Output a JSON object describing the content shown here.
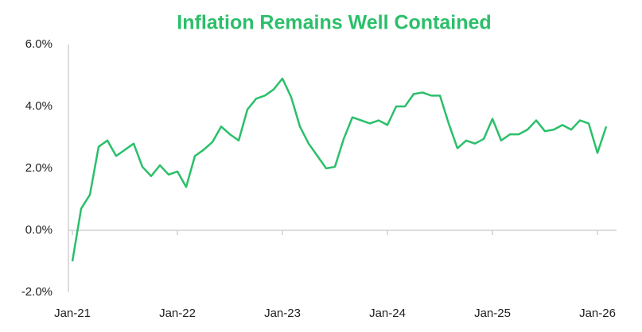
{
  "chart_data": {
    "type": "line",
    "title": "Inflation Remains Well Contained",
    "categories": [
      "Jan-21",
      null,
      null,
      null,
      null,
      null,
      null,
      null,
      null,
      null,
      null,
      null,
      "Jan-22",
      null,
      null,
      null,
      null,
      null,
      null,
      null,
      null,
      null,
      null,
      null,
      "Jan-23",
      null,
      null,
      null,
      null,
      null,
      null,
      null,
      null,
      null,
      null,
      null,
      "Jan-24",
      null,
      null,
      null,
      null,
      null,
      null,
      null,
      null,
      null,
      null,
      null,
      "Jan-25",
      null,
      null,
      null,
      null,
      null,
      null,
      null,
      null,
      null,
      null,
      null,
      "Jan-26",
      null
    ],
    "series": [
      {
        "color": "#2bbf6a",
        "values": [
          -1.0,
          0.7,
          1.15,
          2.7,
          2.9,
          2.4,
          2.6,
          2.8,
          2.05,
          1.75,
          2.1,
          1.8,
          1.9,
          1.4,
          2.4,
          2.6,
          2.85,
          3.35,
          3.1,
          2.9,
          3.9,
          4.25,
          4.35,
          4.55,
          4.9,
          4.3,
          3.35,
          2.8,
          2.4,
          2.0,
          2.05,
          2.95,
          3.65,
          3.55,
          3.45,
          3.55,
          3.4,
          4.0,
          4.0,
          4.4,
          4.45,
          4.35,
          4.35,
          3.45,
          2.65,
          2.9,
          2.8,
          2.95,
          3.6,
          2.9,
          3.1,
          3.1,
          3.25,
          3.55,
          3.2,
          3.25,
          3.4,
          3.25,
          3.55,
          3.45,
          2.5,
          3.35
        ]
      }
    ],
    "ylim": [
      -2,
      6
    ],
    "yticks": [
      {
        "value": -2,
        "label": "-2.0%"
      },
      {
        "value": 0,
        "label": "0.0%"
      },
      {
        "value": 2,
        "label": "2.0%"
      },
      {
        "value": 4,
        "label": "4.0%"
      },
      {
        "value": 6,
        "label": "6.0%"
      }
    ]
  }
}
